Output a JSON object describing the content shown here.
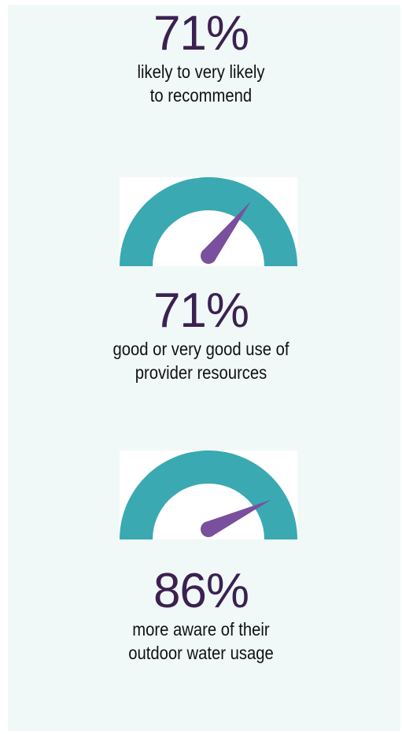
{
  "colors": {
    "background": "#f1f8f8",
    "gauge_arc": "#3aa9b2",
    "gauge_needle": "#7a4f9e",
    "percent_text": "#3b2150",
    "caption_text": "#111111"
  },
  "stats": [
    {
      "percent": "71%",
      "caption_line1": "likely to very likely",
      "caption_line2": "to recommend"
    },
    {
      "percent": "71%",
      "caption_line1": "good or very good use of",
      "caption_line2": "provider resources",
      "gauge_value": 0.71,
      "gauge_icon": "speedometer-icon"
    },
    {
      "percent": "86%",
      "caption_line1": "more aware of their",
      "caption_line2": "outdoor water usage",
      "gauge_value": 0.86,
      "gauge_icon": "speedometer-icon"
    }
  ]
}
